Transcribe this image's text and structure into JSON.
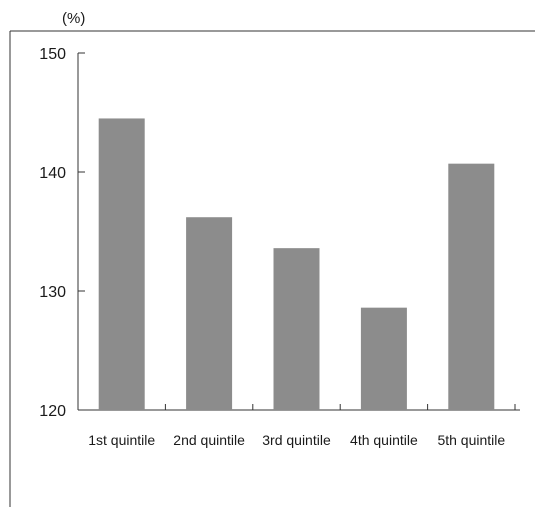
{
  "chart_data": {
    "type": "bar",
    "unit_label": "(%)",
    "categories": [
      "1st quintile",
      "2nd quintile",
      "3rd quintile",
      "4th quintile",
      "5th quintile"
    ],
    "values": [
      144.5,
      136.2,
      133.6,
      128.6,
      140.7
    ],
    "ylim": [
      120,
      150
    ],
    "yticks": [
      120,
      130,
      140,
      150
    ],
    "grid": false,
    "bar_color": "#8c8c8c",
    "axis_color": "#333333"
  }
}
